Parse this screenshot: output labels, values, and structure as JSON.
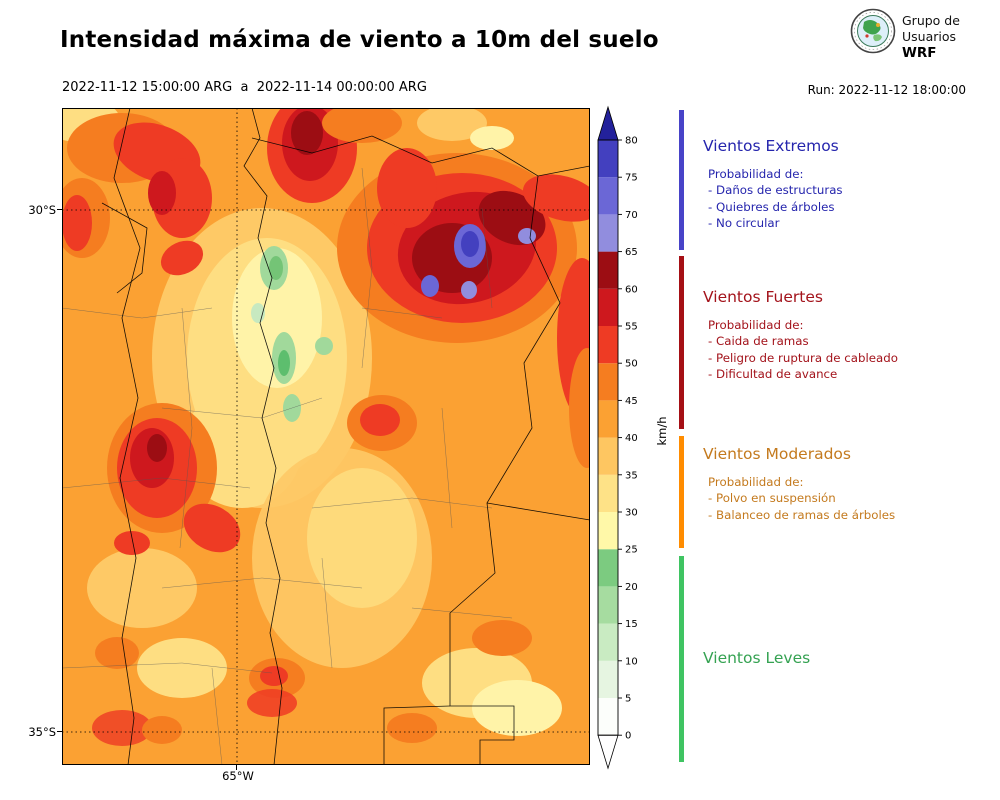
{
  "header": {
    "title": "Intensidad máxima de viento a 10m del suelo",
    "valid_period": "2022-11-12 15:00:00 ARG  a  2022-11-14 00:00:00 ARG",
    "run_label": "Run: 2022-11-12 18:00:00",
    "logo": {
      "org_line1": "Grupo de",
      "org_line2": "Usuarios",
      "org_line3": "WRF"
    }
  },
  "map": {
    "lat_labels": [
      "30°S",
      "35°S"
    ],
    "lon_label": "65°W"
  },
  "colorbar": {
    "unit": "km/h",
    "ticks": [
      0,
      5,
      10,
      15,
      20,
      25,
      30,
      35,
      40,
      45,
      50,
      55,
      60,
      65,
      70,
      75,
      80
    ],
    "segments": [
      {
        "from": 0,
        "to": 5,
        "color": "#FCFEFB"
      },
      {
        "from": 5,
        "to": 10,
        "color": "#E6F5E1"
      },
      {
        "from": 10,
        "to": 15,
        "color": "#C9EBC2"
      },
      {
        "from": 15,
        "to": 20,
        "color": "#A6DCA0"
      },
      {
        "from": 20,
        "to": 25,
        "color": "#7CCB80"
      },
      {
        "from": 25,
        "to": 30,
        "color": "#FFF8A8"
      },
      {
        "from": 30,
        "to": 35,
        "color": "#FEE287"
      },
      {
        "from": 35,
        "to": 40,
        "color": "#FEC661"
      },
      {
        "from": 40,
        "to": 45,
        "color": "#FBA133"
      },
      {
        "from": 45,
        "to": 50,
        "color": "#F57D20"
      },
      {
        "from": 50,
        "to": 55,
        "color": "#EE3B24"
      },
      {
        "from": 55,
        "to": 60,
        "color": "#CE181E"
      },
      {
        "from": 60,
        "to": 65,
        "color": "#9C0D13"
      },
      {
        "from": 65,
        "to": 70,
        "color": "#918DDE"
      },
      {
        "from": 70,
        "to": 75,
        "color": "#6B67D6"
      },
      {
        "from": 75,
        "to": 80,
        "color": "#4340BF"
      }
    ],
    "extend_over_color": "#23219B",
    "extend_under_color": "#FFFFFF"
  },
  "legend": {
    "sections": [
      {
        "title": "Vientos Extremos",
        "text_color": "#2525AD",
        "strip_color": "#4843C8",
        "items": [
          "Probabilidad de:",
          "- Daños de estructuras",
          "- Quiebres de árboles",
          "- No circular"
        ]
      },
      {
        "title": "Vientos Fuertes",
        "text_color": "#A3131B",
        "strip_color": "#A50F15",
        "items": [
          "Probabilidad de:",
          "- Caida de ramas",
          "- Peligro de ruptura de cableado",
          "- Dificultad de avance"
        ]
      },
      {
        "title": "Vientos Moderados",
        "text_color": "#C47A1E",
        "strip_color": "#FF8C00",
        "items": [
          "Probabilidad de:",
          "- Polvo en suspensión",
          "- Balanceo de ramas de árboles"
        ]
      },
      {
        "title": "Vientos Leves",
        "text_color": "#35A252",
        "strip_color": "#3FC462",
        "items": []
      }
    ]
  },
  "chart_data": {
    "type": "heatmap",
    "title": "Intensidad máxima de viento a 10m del suelo",
    "valid_period": "2022-11-12 15:00:00 ARG a 2022-11-14 00:00:00 ARG",
    "model_run": "2022-11-12 18:00:00",
    "unit": "km/h",
    "colorbar_ticks": [
      0,
      5,
      10,
      15,
      20,
      25,
      30,
      35,
      40,
      45,
      50,
      55,
      60,
      65,
      70,
      75,
      80
    ],
    "colorbar_extend": "both",
    "lat_gridlines": [
      "30°S",
      "35°S"
    ],
    "lon_gridlines": [
      "65°W"
    ],
    "categories": [
      {
        "name": "Vientos Leves",
        "range_kmh": [
          0,
          25
        ]
      },
      {
        "name": "Vientos Moderados",
        "range_kmh": [
          25,
          40
        ]
      },
      {
        "name": "Vientos Fuertes",
        "range_kmh": [
          40,
          65
        ]
      },
      {
        "name": "Vientos Extremos",
        "range_kmh": [
          65,
          80
        ]
      }
    ],
    "field_summary": [
      "Mayor parte del dominio con máximas de 35-55 km/h (naranja a rojo)",
      "Máximos de 55-65 km/h (rojo oscuro) extensos al noreste del dominio, cerca de 30°S",
      "Núcleos aislados azules (>65 km/h, vientos extremos) dentro de la zona roja del noreste",
      "Zonas verdes (10-25 km/h, vientos leves) en el centro-oeste",
      "Otro núcleo rojo oscuro (55-65 km/h) en el centro-oeste del dominio",
      "Franjas amarillas pálidas (25-35 km/h) en el centro y sureste"
    ]
  }
}
